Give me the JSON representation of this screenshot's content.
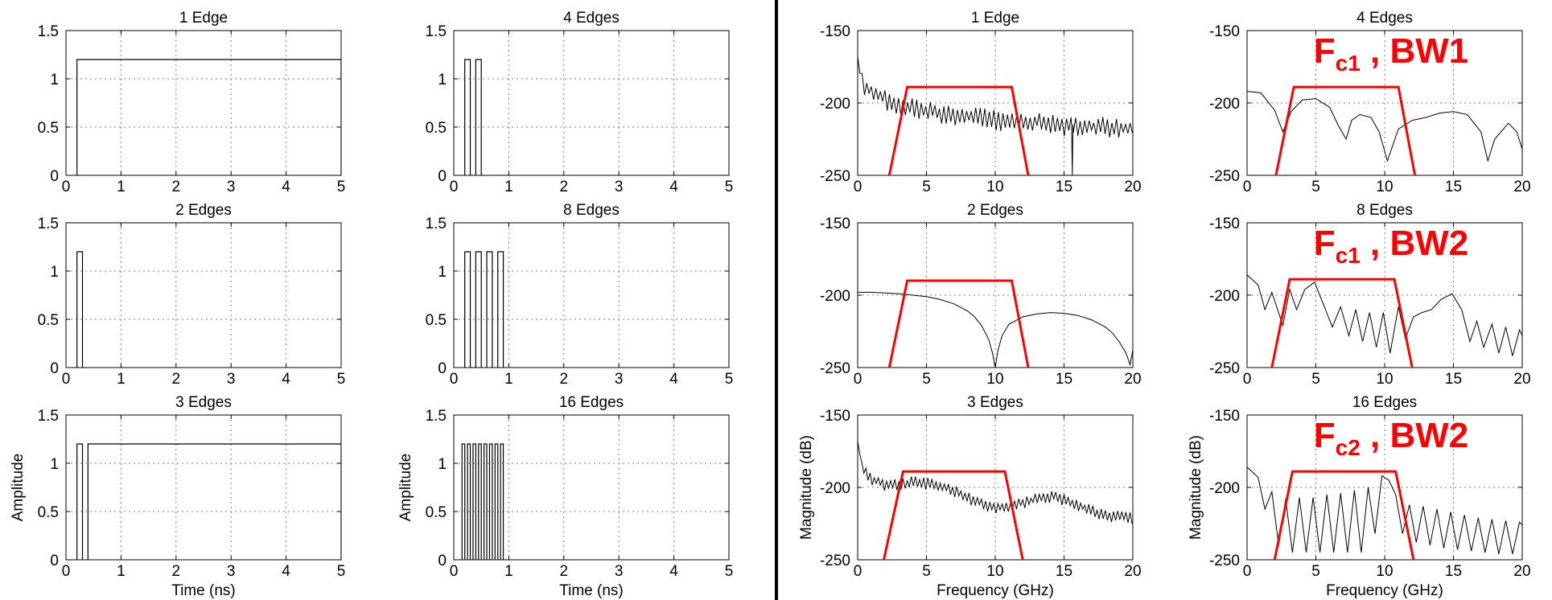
{
  "colors": {
    "axes": "#000000",
    "grid": "#7f7f7f",
    "signal": "#000000",
    "overlay": "#ff0000",
    "divider": "#000000"
  },
  "chart_data": [
    {
      "type": "line",
      "title": "1 Edge",
      "xlabel": "",
      "ylabel": "",
      "xlim": [
        0,
        5
      ],
      "ylim": [
        0,
        1.5
      ],
      "xticks": [
        "0",
        "1",
        "2",
        "3",
        "4",
        "5"
      ],
      "yticks": [
        "0",
        "0.5",
        "1",
        "1.5"
      ],
      "grid": true,
      "pulses": [
        {
          "start": 0.2,
          "end": 5,
          "amplitude": 1.2
        }
      ]
    },
    {
      "type": "line",
      "title": "2 Edges",
      "xlabel": "",
      "ylabel": "",
      "xlim": [
        0,
        5
      ],
      "ylim": [
        0,
        1.5
      ],
      "xticks": [
        "0",
        "1",
        "2",
        "3",
        "4",
        "5"
      ],
      "yticks": [
        "0",
        "0.5",
        "1",
        "1.5"
      ],
      "grid": true,
      "pulses": [
        {
          "start": 0.2,
          "end": 0.3,
          "amplitude": 1.2
        }
      ]
    },
    {
      "type": "line",
      "title": "3 Edges",
      "xlabel": "Time (ns)",
      "ylabel": "Amplitude",
      "xlim": [
        0,
        5
      ],
      "ylim": [
        0,
        1.5
      ],
      "xticks": [
        "0",
        "1",
        "2",
        "3",
        "4",
        "5"
      ],
      "yticks": [
        "0",
        "0.5",
        "1",
        "1.5"
      ],
      "grid": true,
      "pulses": [
        {
          "start": 0.2,
          "end": 0.3,
          "amplitude": 1.2
        },
        {
          "start": 0.4,
          "end": 5,
          "amplitude": 1.2
        }
      ]
    },
    {
      "type": "line",
      "title": "4 Edges",
      "xlabel": "",
      "ylabel": "",
      "xlim": [
        0,
        5
      ],
      "ylim": [
        0,
        1.5
      ],
      "xticks": [
        "0",
        "1",
        "2",
        "3",
        "4",
        "5"
      ],
      "yticks": [
        "0",
        "0.5",
        "1",
        "1.5"
      ],
      "grid": true,
      "pulses": [
        {
          "start": 0.2,
          "end": 0.3,
          "amplitude": 1.2
        },
        {
          "start": 0.4,
          "end": 0.5,
          "amplitude": 1.2
        }
      ]
    },
    {
      "type": "line",
      "title": "8 Edges",
      "xlabel": "",
      "ylabel": "",
      "xlim": [
        0,
        5
      ],
      "ylim": [
        0,
        1.5
      ],
      "xticks": [
        "0",
        "1",
        "2",
        "3",
        "4",
        "5"
      ],
      "yticks": [
        "0",
        "0.5",
        "1",
        "1.5"
      ],
      "grid": true,
      "pulses": [
        {
          "start": 0.2,
          "end": 0.3,
          "amplitude": 1.2
        },
        {
          "start": 0.4,
          "end": 0.5,
          "amplitude": 1.2
        },
        {
          "start": 0.6,
          "end": 0.7,
          "amplitude": 1.2
        },
        {
          "start": 0.8,
          "end": 0.9,
          "amplitude": 1.2
        }
      ]
    },
    {
      "type": "line",
      "title": "16 Edges",
      "xlabel": "Time (ns)",
      "ylabel": "Amplitude",
      "xlim": [
        0,
        5
      ],
      "ylim": [
        0,
        1.5
      ],
      "xticks": [
        "0",
        "1",
        "2",
        "3",
        "4",
        "5"
      ],
      "yticks": [
        "0",
        "0.5",
        "1",
        "1.5"
      ],
      "grid": true,
      "pulses": [
        {
          "start": 0.15,
          "end": 0.2,
          "amplitude": 1.2
        },
        {
          "start": 0.25,
          "end": 0.3,
          "amplitude": 1.2
        },
        {
          "start": 0.35,
          "end": 0.4,
          "amplitude": 1.2
        },
        {
          "start": 0.45,
          "end": 0.5,
          "amplitude": 1.2
        },
        {
          "start": 0.55,
          "end": 0.6,
          "amplitude": 1.2
        },
        {
          "start": 0.65,
          "end": 0.7,
          "amplitude": 1.2
        },
        {
          "start": 0.75,
          "end": 0.8,
          "amplitude": 1.2
        },
        {
          "start": 0.85,
          "end": 0.9,
          "amplitude": 1.2
        }
      ]
    },
    {
      "type": "line",
      "title": "1 Edge",
      "xlabel": "",
      "ylabel": "",
      "xlim": [
        0,
        20
      ],
      "ylim": [
        -250,
        -150
      ],
      "xticks": [
        "0",
        "5",
        "10",
        "15",
        "20"
      ],
      "yticks": [
        "-250",
        "-200",
        "-150"
      ],
      "grid": true,
      "spectrum": {
        "x": [
          0,
          0.2,
          0.5,
          1,
          2,
          3,
          4,
          5,
          6,
          7,
          8,
          9,
          10,
          11,
          12,
          13,
          14,
          15,
          16,
          17,
          18,
          19,
          20
        ],
        "y": [
          -168,
          -182,
          -188,
          -192,
          -197,
          -200,
          -203,
          -205,
          -207,
          -208,
          -209,
          -210,
          -211,
          -212,
          -213,
          -213,
          -214,
          -215,
          -215,
          -216,
          -216,
          -217,
          -217
        ],
        "ripple_db": 12,
        "ripple_period_ghz": 0.33,
        "notches": [
          {
            "x": 15.6,
            "y": -250
          }
        ]
      },
      "filter": {
        "x": [
          2.3,
          3.6,
          11.2,
          12.4
        ],
        "y": [
          -250,
          -189,
          -189,
          -250
        ]
      }
    },
    {
      "type": "line",
      "title": "2 Edges",
      "xlabel": "",
      "ylabel": "",
      "xlim": [
        0,
        20
      ],
      "ylim": [
        -250,
        -150
      ],
      "xticks": [
        "0",
        "5",
        "10",
        "15",
        "20"
      ],
      "yticks": [
        "-250",
        "-200",
        "-150"
      ],
      "grid": true,
      "spectrum": {
        "x": [
          0,
          1,
          2,
          3,
          4,
          5,
          6,
          7,
          8,
          8.5,
          9,
          9.5,
          9.8,
          10,
          10.2,
          10.5,
          11,
          12,
          13,
          14,
          15,
          16,
          17,
          18,
          18.5,
          19,
          19.5,
          19.8,
          20
        ],
        "y": [
          -198,
          -198,
          -198.5,
          -199,
          -200,
          -201,
          -203,
          -206,
          -211,
          -215,
          -221,
          -230,
          -240,
          -250,
          -238,
          -228,
          -220,
          -215,
          -213,
          -212,
          -212.5,
          -214,
          -217,
          -222,
          -226,
          -232,
          -240,
          -248,
          -238
        ],
        "ripple_db": 0,
        "ripple_period_ghz": 1,
        "notches": []
      },
      "filter": {
        "x": [
          2.3,
          3.6,
          11.2,
          12.4
        ],
        "y": [
          -250,
          -190,
          -190,
          -250
        ]
      }
    },
    {
      "type": "line",
      "title": "3 Edges",
      "xlabel": "Frequency (GHz)",
      "ylabel": "Magnitude (dB)",
      "xlim": [
        0,
        20
      ],
      "ylim": [
        -250,
        -150
      ],
      "xticks": [
        "0",
        "5",
        "10",
        "15",
        "20"
      ],
      "yticks": [
        "-250",
        "-200",
        "-150"
      ],
      "grid": true,
      "spectrum": {
        "x": [
          0,
          0.2,
          0.5,
          1,
          2,
          3,
          4,
          5,
          6,
          7,
          8,
          9,
          10,
          11,
          12,
          13,
          14,
          15,
          16,
          17,
          18,
          19,
          20
        ],
        "y": [
          -168,
          -180,
          -188,
          -194,
          -198,
          -198,
          -196,
          -197,
          -199,
          -202,
          -207,
          -211,
          -214,
          -214,
          -210,
          -208,
          -206,
          -208,
          -212,
          -216,
          -219,
          -220,
          -221
        ],
        "ripple_db": 7,
        "ripple_period_ghz": 0.3,
        "notches": []
      },
      "filter": {
        "x": [
          1.9,
          3.3,
          10.7,
          12.0
        ],
        "y": [
          -250,
          -189,
          -189,
          -250
        ]
      }
    },
    {
      "type": "line",
      "title": "4 Edges",
      "xlabel": "",
      "ylabel": "",
      "xlim": [
        0,
        20
      ],
      "ylim": [
        -250,
        -150
      ],
      "xticks": [
        "0",
        "5",
        "10",
        "15",
        "20"
      ],
      "yticks": [
        "-250",
        "-200",
        "-150"
      ],
      "grid": true,
      "spectrum": {
        "x": [
          0,
          1,
          2,
          2.6,
          3.2,
          4,
          5,
          6,
          6.6,
          7.2,
          7.6,
          8.2,
          9,
          9.6,
          10.2,
          11,
          12,
          13,
          14,
          15,
          16,
          17,
          17.5,
          18,
          19,
          19.6,
          20
        ],
        "y": [
          -192,
          -193,
          -205,
          -220,
          -206,
          -198,
          -197,
          -203,
          -215,
          -225,
          -212,
          -208,
          -210,
          -220,
          -240,
          -218,
          -212,
          -210,
          -207,
          -206,
          -208,
          -220,
          -240,
          -225,
          -214,
          -220,
          -232
        ],
        "ripple_db": 0,
        "ripple_period_ghz": 1,
        "notches": []
      },
      "filter": {
        "x": [
          2.1,
          3.4,
          11.0,
          12.2
        ],
        "y": [
          -250,
          -189,
          -189,
          -250
        ]
      },
      "annotation": {
        "main": "F",
        "sub": "c1",
        "rest": " , BW1"
      }
    },
    {
      "type": "line",
      "title": "8 Edges",
      "xlabel": "",
      "ylabel": "",
      "xlim": [
        0,
        20
      ],
      "ylim": [
        -250,
        -150
      ],
      "xticks": [
        "0",
        "5",
        "10",
        "15",
        "20"
      ],
      "yticks": [
        "-250",
        "-200",
        "-150"
      ],
      "grid": true,
      "spectrum": {
        "x": [
          0,
          0.8,
          1.3,
          1.8,
          2.6,
          3.1,
          3.6,
          4.2,
          4.9,
          5.7,
          6.2,
          6.8,
          7.4,
          7.9,
          8.4,
          8.9,
          9.4,
          9.9,
          10.4,
          11.0,
          11.5,
          12.1,
          12.7,
          13.4,
          14.1,
          14.9,
          15.6,
          16.2,
          16.7,
          17.2,
          17.8,
          18.3,
          18.8,
          19.3,
          19.8,
          20
        ],
        "y": [
          -186,
          -193,
          -210,
          -198,
          -221,
          -196,
          -210,
          -196,
          -191,
          -210,
          -222,
          -208,
          -228,
          -210,
          -232,
          -212,
          -236,
          -212,
          -240,
          -208,
          -230,
          -215,
          -212,
          -210,
          -203,
          -199,
          -210,
          -232,
          -218,
          -236,
          -220,
          -240,
          -222,
          -242,
          -224,
          -228
        ],
        "ripple_db": 0,
        "ripple_period_ghz": 1,
        "notches": []
      },
      "filter": {
        "x": [
          1.8,
          3.1,
          10.7,
          12.0
        ],
        "y": [
          -250,
          -189,
          -189,
          -250
        ]
      },
      "annotation": {
        "main": "F",
        "sub": "c1",
        "rest": " , BW2"
      }
    },
    {
      "type": "line",
      "title": "16 Edges",
      "xlabel": "Frequency (GHz)",
      "ylabel": "Magnitude (dB)",
      "xlim": [
        0,
        20
      ],
      "ylim": [
        -250,
        -150
      ],
      "xticks": [
        "0",
        "5",
        "10",
        "15",
        "20"
      ],
      "yticks": [
        "-250",
        "-200",
        "-150"
      ],
      "grid": true,
      "spectrum": {
        "x": [
          0,
          0.8,
          1.3,
          1.8,
          2.3,
          2.8,
          3.3,
          3.8,
          4.3,
          4.8,
          5.3,
          5.8,
          6.3,
          6.8,
          7.3,
          7.8,
          8.3,
          8.8,
          9.3,
          9.8,
          10.3,
          10.8,
          11.3,
          11.8,
          12.3,
          12.8,
          13.3,
          13.8,
          14.3,
          14.8,
          15.3,
          15.8,
          16.3,
          16.8,
          17.3,
          17.8,
          18.3,
          18.8,
          19.3,
          19.8,
          20
        ],
        "y": [
          -186,
          -193,
          -215,
          -203,
          -240,
          -208,
          -245,
          -207,
          -245,
          -207,
          -245,
          -205,
          -245,
          -204,
          -245,
          -202,
          -245,
          -200,
          -232,
          -192,
          -195,
          -205,
          -232,
          -212,
          -238,
          -213,
          -240,
          -215,
          -242,
          -217,
          -243,
          -219,
          -244,
          -221,
          -245,
          -222,
          -246,
          -223,
          -246,
          -224,
          -226
        ],
        "ripple_db": 0,
        "ripple_period_ghz": 1,
        "notches": []
      },
      "filter": {
        "x": [
          2.0,
          3.3,
          10.8,
          12.1
        ],
        "y": [
          -250,
          -189,
          -189,
          -250
        ]
      },
      "annotation": {
        "main": "F",
        "sub": "c2",
        "rest": " , BW2"
      }
    }
  ]
}
